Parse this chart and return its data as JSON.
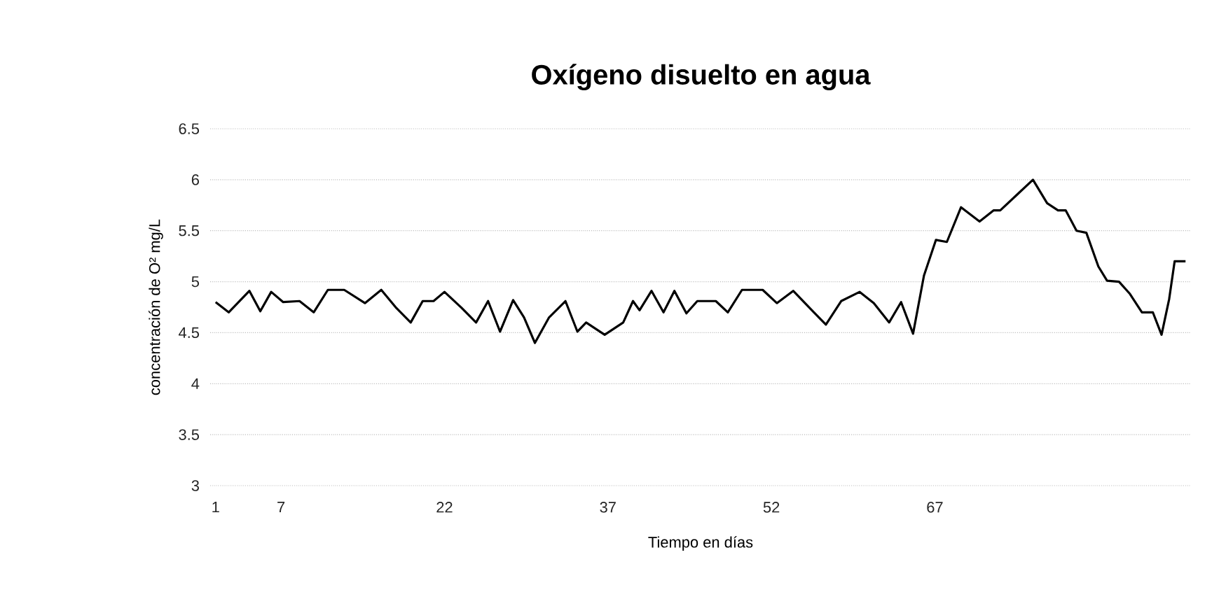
{
  "chart_data": {
    "type": "line",
    "title": "Oxígeno disuelto en agua",
    "xlabel": "Tiempo en días",
    "ylabel": "concentración de O² mg/L",
    "xlim": [
      0.5,
      90.5
    ],
    "xticks": [
      1,
      7,
      22,
      37,
      52,
      67
    ],
    "ylim": [
      3,
      6.5
    ],
    "yticks": [
      3,
      3.5,
      4,
      4.5,
      5,
      5.5,
      6,
      6.5
    ],
    "grid": "y",
    "marker": "none",
    "line_style": "solid",
    "series": [
      {
        "color": "#000000",
        "x": [
          1,
          2.2,
          4.1,
          5.1,
          6.1,
          7.2,
          8.7,
          10,
          11.3,
          12.8,
          14.7,
          16.2,
          17.6,
          18.9,
          20,
          21,
          22,
          23.6,
          24.9,
          26,
          27.1,
          28.3,
          29.3,
          30.3,
          31.6,
          33.1,
          34.2,
          35,
          36.7,
          38.4,
          39.3,
          39.9,
          41,
          42.1,
          43.1,
          44.2,
          45.2,
          46.9,
          48,
          49.3,
          51.2,
          52.5,
          54,
          55.9,
          57,
          58.4,
          60.1,
          61.4,
          62.8,
          63.9,
          65,
          66,
          67.1,
          68.1,
          69.4,
          71.1,
          72.4,
          73,
          74.5,
          76,
          77.3,
          78.3,
          79,
          80,
          80.9,
          82,
          82.8,
          83.9,
          84.9,
          86,
          87,
          87.8,
          88.5,
          89,
          90
        ],
        "values": [
          4.8,
          4.7,
          4.91,
          4.71,
          4.9,
          4.8,
          4.81,
          4.7,
          4.92,
          4.92,
          4.79,
          4.92,
          4.74,
          4.6,
          4.81,
          4.81,
          4.9,
          4.74,
          4.6,
          4.81,
          4.51,
          4.82,
          4.65,
          4.4,
          4.65,
          4.81,
          4.51,
          4.6,
          4.48,
          4.6,
          4.81,
          4.72,
          4.91,
          4.7,
          4.91,
          4.69,
          4.81,
          4.81,
          4.7,
          4.92,
          4.92,
          4.79,
          4.91,
          4.7,
          4.58,
          4.81,
          4.9,
          4.79,
          4.6,
          4.8,
          4.49,
          5.06,
          5.41,
          5.39,
          5.73,
          5.59,
          5.7,
          5.7,
          5.85,
          6.0,
          5.77,
          5.7,
          5.7,
          5.5,
          5.48,
          5.15,
          5.01,
          5.0,
          4.88,
          4.7,
          4.7,
          4.48,
          4.83,
          5.2,
          5.2
        ]
      }
    ]
  }
}
